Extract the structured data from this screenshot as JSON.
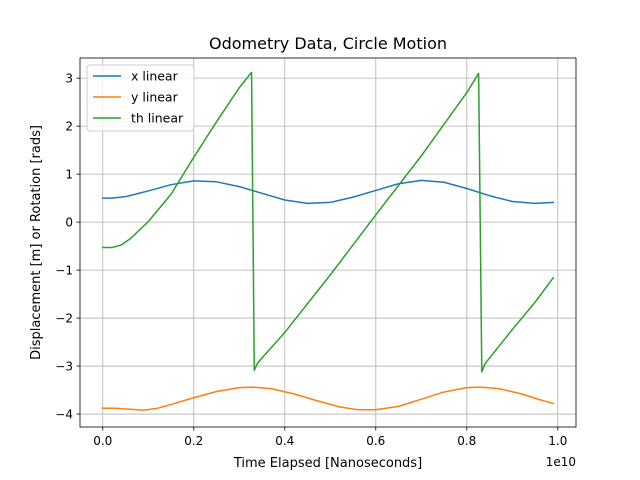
{
  "chart_data": {
    "type": "line",
    "title": "Odometry Data, Circle Motion",
    "xlabel": "Time Elapsed [Nanoseconds]",
    "ylabel": "Displacement [m] or Rotation [rads]",
    "x_offset_text": "1e10",
    "xlim": [
      -0.05,
      1.04
    ],
    "ylim": [
      -4.27,
      3.42
    ],
    "x_ticks": [
      0.0,
      0.2,
      0.4,
      0.6,
      0.8,
      1.0
    ],
    "x_tick_labels": [
      "0.0",
      "0.2",
      "0.4",
      "0.6",
      "0.8",
      "1.0"
    ],
    "y_ticks": [
      -4,
      -3,
      -2,
      -1,
      0,
      1,
      2,
      3
    ],
    "y_tick_labels": [
      "−4",
      "−3",
      "−2",
      "−1",
      "0",
      "1",
      "2",
      "3"
    ],
    "grid": true,
    "legend_position": "upper-left",
    "series": [
      {
        "name": "x linear",
        "color": "#1f77b4",
        "x": [
          0.0,
          0.02,
          0.05,
          0.1,
          0.15,
          0.2,
          0.25,
          0.3,
          0.35,
          0.4,
          0.45,
          0.5,
          0.55,
          0.6,
          0.65,
          0.7,
          0.75,
          0.8,
          0.85,
          0.9,
          0.95,
          0.99
        ],
        "y": [
          0.5,
          0.5,
          0.53,
          0.65,
          0.78,
          0.86,
          0.84,
          0.74,
          0.6,
          0.46,
          0.39,
          0.41,
          0.52,
          0.66,
          0.8,
          0.87,
          0.83,
          0.7,
          0.55,
          0.43,
          0.39,
          0.41
        ]
      },
      {
        "name": "y linear",
        "color": "#ff7f0e",
        "x": [
          0.0,
          0.03,
          0.06,
          0.09,
          0.12,
          0.15,
          0.2,
          0.25,
          0.3,
          0.33,
          0.37,
          0.42,
          0.47,
          0.52,
          0.56,
          0.6,
          0.65,
          0.7,
          0.75,
          0.8,
          0.83,
          0.87,
          0.92,
          0.96,
          0.99
        ],
        "y": [
          -3.88,
          -3.88,
          -3.9,
          -3.92,
          -3.88,
          -3.8,
          -3.66,
          -3.53,
          -3.45,
          -3.44,
          -3.47,
          -3.58,
          -3.72,
          -3.85,
          -3.91,
          -3.91,
          -3.84,
          -3.69,
          -3.54,
          -3.45,
          -3.44,
          -3.47,
          -3.58,
          -3.7,
          -3.78
        ]
      },
      {
        "name": "th linear",
        "color": "#2ca02c",
        "x": [
          0.0,
          0.02,
          0.04,
          0.06,
          0.08,
          0.1,
          0.15,
          0.2,
          0.25,
          0.3,
          0.327,
          0.333,
          0.34,
          0.4,
          0.5,
          0.6,
          0.7,
          0.8,
          0.826,
          0.833,
          0.84,
          0.9,
          0.95,
          0.99
        ],
        "y": [
          -0.53,
          -0.53,
          -0.48,
          -0.35,
          -0.17,
          0.01,
          0.58,
          1.35,
          2.09,
          2.8,
          3.12,
          -3.09,
          -2.94,
          -2.3,
          -1.1,
          0.15,
          1.38,
          2.7,
          3.1,
          -3.12,
          -2.95,
          -2.24,
          -1.67,
          -1.16
        ]
      }
    ]
  }
}
